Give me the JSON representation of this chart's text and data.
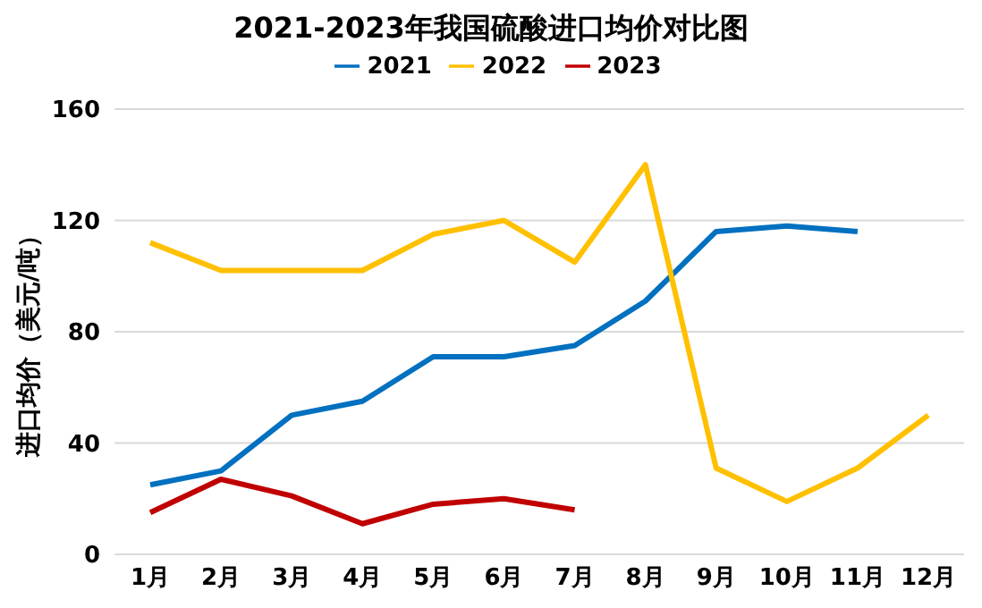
{
  "chart_data": {
    "type": "line",
    "title": "2021-2023年我国硫酸进口均价对比图",
    "ylabel": "进口均价（美元/吨）",
    "categories": [
      "1月",
      "2月",
      "3月",
      "4月",
      "5月",
      "6月",
      "7月",
      "8月",
      "9月",
      "10月",
      "11月",
      "12月"
    ],
    "series": [
      {
        "name": "2021",
        "color": "#0070c0",
        "values": [
          25,
          30,
          50,
          55,
          71,
          71,
          75,
          91,
          116,
          118,
          116,
          null
        ]
      },
      {
        "name": "2022",
        "color": "#ffc000",
        "values": [
          112,
          102,
          102,
          102,
          115,
          120,
          105,
          140,
          31,
          19,
          31,
          50
        ]
      },
      {
        "name": "2023",
        "color": "#c00000",
        "values": [
          15,
          27,
          21,
          11,
          18,
          20,
          16,
          null,
          null,
          null,
          null,
          null
        ]
      }
    ],
    "ylim": [
      0,
      160
    ],
    "yticks": [
      0,
      40,
      80,
      120,
      160
    ],
    "grid": "y",
    "legend": "top",
    "marker": "none",
    "line_style": "solid"
  }
}
